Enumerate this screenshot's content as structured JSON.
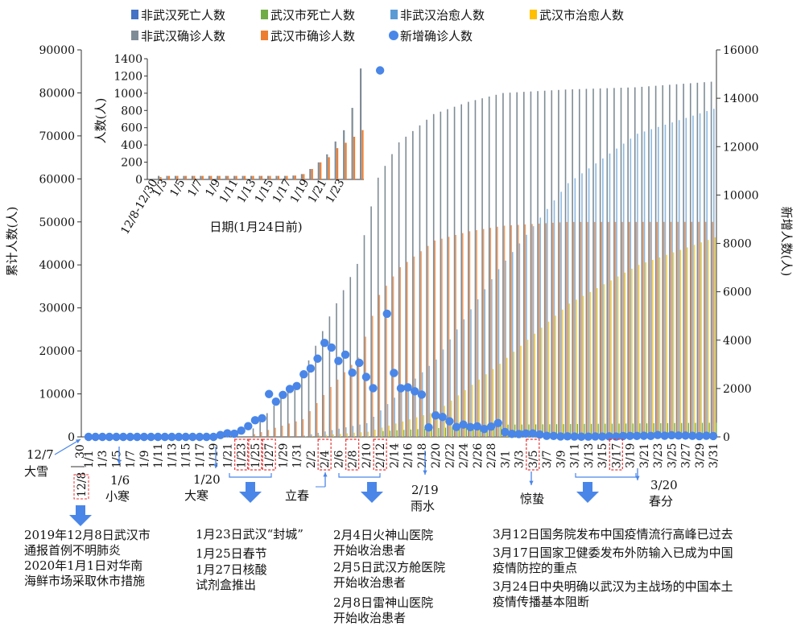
{
  "chart_data": {
    "type": "bar",
    "series": [
      {
        "name": "非武汉死亡人数",
        "color": "#4472c4"
      },
      {
        "name": "武汉市死亡人数",
        "color": "#70ad47"
      },
      {
        "name": "非武汉治愈人数",
        "color": "#5b9bd5"
      },
      {
        "name": "武汉市治愈人数",
        "color": "#ffc000"
      },
      {
        "name": "非武汉确诊人数",
        "color": "#7f8c96"
      },
      {
        "name": "武汉市确诊人数",
        "color": "#ed7d31"
      },
      {
        "name": "新增确诊人数",
        "color": "#4a86e8"
      }
    ],
    "left_axis": {
      "label": "累计人数(人)",
      "ticks": [
        "0",
        "10000",
        "20000",
        "30000",
        "40000",
        "50000",
        "60000",
        "70000",
        "80000",
        "90000"
      ],
      "range": [
        0,
        90000
      ]
    },
    "right_axis": {
      "label": "新增人数(人)",
      "ticks": [
        "0",
        "2000",
        "4000",
        "6000",
        "8000",
        "10000",
        "12000",
        "14000",
        "16000"
      ],
      "range": [
        0,
        16000
      ]
    },
    "x_tick_labels": [
      "1/1",
      "1/3",
      "1/5",
      "1/7",
      "1/9",
      "1/11",
      "1/13",
      "1/15",
      "1/17",
      "1/19",
      "1/21",
      "1/23",
      "1/25",
      "1/27",
      "1/29",
      "1/31",
      "2/2",
      "2/4",
      "2/6",
      "2/8",
      "2/10",
      "2/12",
      "2/14",
      "2/16",
      "2/18",
      "2/20",
      "2/22",
      "2/24",
      "2/26",
      "2/28",
      "3/1",
      "3/3",
      "3/5",
      "3/7",
      "3/9",
      "3/11",
      "3/13",
      "3/15",
      "3/17",
      "3/19",
      "3/21",
      "3/23",
      "3/25",
      "3/27",
      "3/29",
      "3/31"
    ],
    "x_extra_label": "30",
    "highlighted_dates": [
      "1/23",
      "1/25",
      "1/27",
      "2/4",
      "2/8",
      "2/12",
      "3/5",
      "3/17"
    ],
    "daily_new": [
      {
        "date": "1/20",
        "value": 77
      },
      {
        "date": "1/21",
        "value": 149
      },
      {
        "date": "1/22",
        "value": 131
      },
      {
        "date": "1/23",
        "value": 259
      },
      {
        "date": "1/24",
        "value": 444
      },
      {
        "date": "1/25",
        "value": 688
      },
      {
        "date": "1/26",
        "value": 769
      },
      {
        "date": "1/27",
        "value": 1771
      },
      {
        "date": "1/28",
        "value": 1459
      },
      {
        "date": "1/29",
        "value": 1737
      },
      {
        "date": "1/30",
        "value": 1982
      },
      {
        "date": "1/31",
        "value": 2102
      },
      {
        "date": "2/1",
        "value": 2590
      },
      {
        "date": "2/2",
        "value": 2829
      },
      {
        "date": "2/3",
        "value": 3235
      },
      {
        "date": "2/4",
        "value": 3887
      },
      {
        "date": "2/5",
        "value": 3694
      },
      {
        "date": "2/6",
        "value": 3143
      },
      {
        "date": "2/7",
        "value": 3399
      },
      {
        "date": "2/8",
        "value": 2656
      },
      {
        "date": "2/9",
        "value": 3062
      },
      {
        "date": "2/10",
        "value": 2478
      },
      {
        "date": "2/11",
        "value": 2015
      },
      {
        "date": "2/12",
        "value": 15152
      },
      {
        "date": "2/13",
        "value": 5090
      },
      {
        "date": "2/14",
        "value": 2641
      },
      {
        "date": "2/15",
        "value": 2009
      },
      {
        "date": "2/16",
        "value": 2048
      },
      {
        "date": "2/17",
        "value": 1886
      },
      {
        "date": "2/18",
        "value": 1749
      },
      {
        "date": "2/19",
        "value": 394
      },
      {
        "date": "2/20",
        "value": 889
      },
      {
        "date": "2/21",
        "value": 823
      },
      {
        "date": "2/22",
        "value": 648
      },
      {
        "date": "2/23",
        "value": 409
      },
      {
        "date": "2/24",
        "value": 508
      },
      {
        "date": "2/25",
        "value": 406
      },
      {
        "date": "2/26",
        "value": 433
      },
      {
        "date": "2/27",
        "value": 327
      },
      {
        "date": "2/28",
        "value": 427
      },
      {
        "date": "2/29",
        "value": 573
      },
      {
        "date": "3/1",
        "value": 202
      },
      {
        "date": "3/2",
        "value": 125
      },
      {
        "date": "3/3",
        "value": 119
      },
      {
        "date": "3/4",
        "value": 139
      },
      {
        "date": "3/5",
        "value": 143
      },
      {
        "date": "3/6",
        "value": 99
      },
      {
        "date": "3/7",
        "value": 44
      },
      {
        "date": "3/8",
        "value": 40
      },
      {
        "date": "3/9",
        "value": 19
      },
      {
        "date": "3/10",
        "value": 24
      },
      {
        "date": "3/11",
        "value": 15
      },
      {
        "date": "3/12",
        "value": 8
      },
      {
        "date": "3/13",
        "value": 11
      },
      {
        "date": "3/14",
        "value": 20
      },
      {
        "date": "3/15",
        "value": 16
      },
      {
        "date": "3/16",
        "value": 21
      },
      {
        "date": "3/17",
        "value": 13
      },
      {
        "date": "3/18",
        "value": 34
      },
      {
        "date": "3/19",
        "value": 39
      },
      {
        "date": "3/20",
        "value": 41
      },
      {
        "date": "3/21",
        "value": 46
      },
      {
        "date": "3/22",
        "value": 39
      },
      {
        "date": "3/23",
        "value": 78
      },
      {
        "date": "3/24",
        "value": 47
      },
      {
        "date": "3/25",
        "value": 67
      },
      {
        "date": "3/26",
        "value": 55
      },
      {
        "date": "3/27",
        "value": 54
      },
      {
        "date": "3/28",
        "value": 45
      },
      {
        "date": "3/29",
        "value": 31
      },
      {
        "date": "3/30",
        "value": 48
      },
      {
        "date": "3/31",
        "value": 36
      }
    ],
    "cumulative_nonwuhan_confirmed_approx": [
      {
        "date": "1/25",
        "value": 1975
      },
      {
        "date": "2/1",
        "value": 14380
      },
      {
        "date": "2/5",
        "value": 28018
      },
      {
        "date": "2/9",
        "value": 40235
      },
      {
        "date": "2/12",
        "value": 60286
      },
      {
        "date": "2/15",
        "value": 68500
      },
      {
        "date": "2/20",
        "value": 75077
      },
      {
        "date": "2/25",
        "value": 77918
      },
      {
        "date": "3/1",
        "value": 79968
      },
      {
        "date": "3/10",
        "value": 80778
      },
      {
        "date": "3/20",
        "value": 81300
      },
      {
        "date": "3/31",
        "value": 82600
      }
    ],
    "cumulative_wuhan_confirmed_approx": [
      {
        "date": "1/25",
        "value": 618
      },
      {
        "date": "2/1",
        "value": 4109
      },
      {
        "date": "2/5",
        "value": 11618
      },
      {
        "date": "2/9",
        "value": 18454
      },
      {
        "date": "2/12",
        "value": 32994
      },
      {
        "date": "2/15",
        "value": 39462
      },
      {
        "date": "2/20",
        "value": 45660
      },
      {
        "date": "2/25",
        "value": 47824
      },
      {
        "date": "3/1",
        "value": 49122
      },
      {
        "date": "3/10",
        "value": 49978
      },
      {
        "date": "3/31",
        "value": 50006
      }
    ],
    "cumulative_nonwuhan_cured_approx": [
      {
        "date": "2/1",
        "value": 300
      },
      {
        "date": "2/10",
        "value": 3200
      },
      {
        "date": "2/20",
        "value": 18000
      },
      {
        "date": "2/29",
        "value": 39000
      },
      {
        "date": "3/10",
        "value": 59000
      },
      {
        "date": "3/20",
        "value": 70500
      },
      {
        "date": "3/31",
        "value": 76300
      }
    ],
    "cumulative_wuhan_cured_approx": [
      {
        "date": "2/1",
        "value": 100
      },
      {
        "date": "2/10",
        "value": 1200
      },
      {
        "date": "2/20",
        "value": 6000
      },
      {
        "date": "2/29",
        "value": 17000
      },
      {
        "date": "3/10",
        "value": 31000
      },
      {
        "date": "3/20",
        "value": 40000
      },
      {
        "date": "3/31",
        "value": 46400
      }
    ],
    "cumulative_deaths_approx": [
      {
        "date": "2/12",
        "value": 1367
      },
      {
        "date": "2/29",
        "value": 2837
      },
      {
        "date": "3/31",
        "value": 3305
      }
    ],
    "inset": {
      "ylabel": "人数(人)",
      "xlabel": "日期(1月24日前)",
      "yticks": [
        "0",
        "200",
        "400",
        "600",
        "800",
        "1000",
        "1200",
        "1400"
      ],
      "xticks": [
        "12/8-12/30",
        "1/3",
        "1/5",
        "1/7",
        "1/9",
        "1/11",
        "1/13",
        "1/15",
        "1/17",
        "1/19",
        "1/21",
        "1/23"
      ],
      "nonwuhan_confirmed": [
        41,
        41,
        41,
        41,
        41,
        41,
        41,
        41,
        41,
        41,
        41,
        41,
        41,
        41,
        41,
        41,
        45,
        62,
        121,
        198,
        291,
        440,
        571,
        830,
        1287
      ],
      "wuhan_confirmed": [
        27,
        41,
        41,
        41,
        41,
        41,
        41,
        41,
        41,
        41,
        41,
        41,
        41,
        41,
        41,
        41,
        45,
        62,
        121,
        198,
        258,
        363,
        425,
        495,
        572
      ]
    }
  },
  "timeline": {
    "dec7": {
      "date": "12/7",
      "term": "大雪"
    },
    "dec8_box": "12/8",
    "jan6": {
      "date": "1/6",
      "term": "小寒"
    },
    "jan20": {
      "date": "1/20",
      "term": "大寒"
    },
    "lichun": "立春",
    "feb19": {
      "date": "2/19",
      "term": "雨水"
    },
    "jingzhe": "惊蛰",
    "mar20": {
      "date": "3/20",
      "term": "春分"
    }
  },
  "annotations": {
    "col1": "2019年12月8日武汉市\n通报首例不明肺炎\n2020年1月1日对华南\n海鲜市场采取休市措施",
    "col2a": "1月23日武汉“封城”",
    "col2b": "1月25日春节",
    "col2c": "1月27日核酸\n试剂盒推出",
    "col3a": "2月4日火神山医院\n开始收治患者",
    "col3b": "2月5日武汉方舱医院\n开始收治患者",
    "col3c": "2月8日雷神山医院\n开始收治患者",
    "col4a": "3月12日国务院发布中国疫情流行高峰已过去",
    "col4b": "3月17日国家卫健委发布外防输入已成为中国\n疫情防控的重点",
    "col4c": "3月24日中央明确以武汉为主战场的中国本土\n疫情传播基本阻断"
  }
}
